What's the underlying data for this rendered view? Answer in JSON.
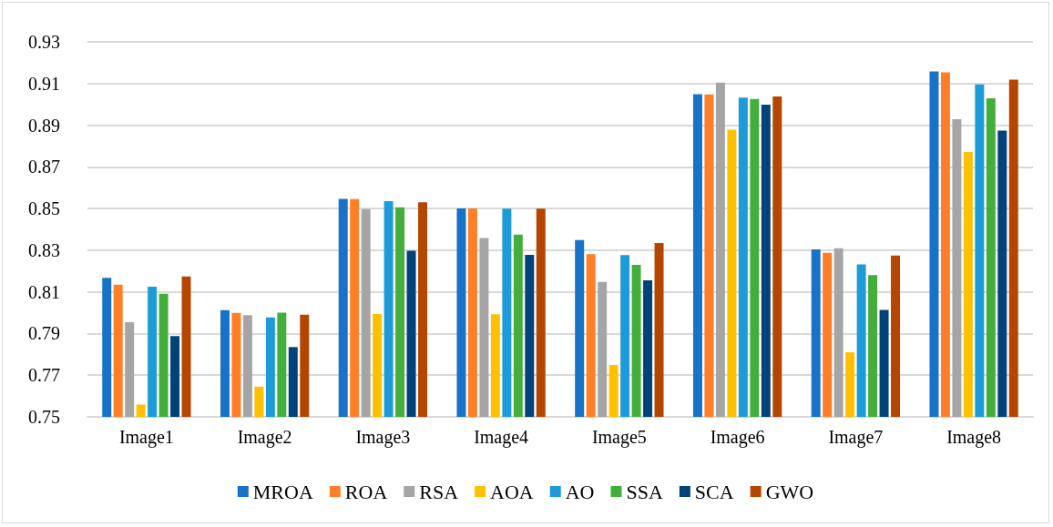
{
  "chart_data": {
    "type": "bar",
    "categories": [
      "Image1",
      "Image2",
      "Image3",
      "Image4",
      "Image5",
      "Image6",
      "Image7",
      "Image8"
    ],
    "series": [
      {
        "name": "MROA",
        "color": "#1772c8",
        "values": [
          0.8167,
          0.8012,
          0.8546,
          0.85,
          0.8349,
          0.9049,
          0.8304,
          0.9158
        ]
      },
      {
        "name": "ROA",
        "color": "#fe7f27",
        "values": [
          0.8135,
          0.7999,
          0.8545,
          0.85,
          0.8281,
          0.9048,
          0.8288,
          0.9154
        ]
      },
      {
        "name": "RSA",
        "color": "#a5a5a5",
        "values": [
          0.7954,
          0.7988,
          0.8497,
          0.8358,
          0.8148,
          0.9104,
          0.8309,
          0.8929
        ]
      },
      {
        "name": "AOA",
        "color": "#ffc000",
        "values": [
          0.7559,
          0.7645,
          0.7994,
          0.7993,
          0.7749,
          0.8878,
          0.781,
          0.8771
        ]
      },
      {
        "name": "AO",
        "color": "#1c9bd8",
        "values": [
          0.8125,
          0.7977,
          0.8535,
          0.8499,
          0.8277,
          0.9032,
          0.8232,
          0.9096
        ]
      },
      {
        "name": "SSA",
        "color": "#44ae3c",
        "values": [
          0.8091,
          0.8,
          0.8506,
          0.8375,
          0.823,
          0.9026,
          0.818,
          0.9029
        ]
      },
      {
        "name": "SCA",
        "color": "#00427a",
        "values": [
          0.7888,
          0.7835,
          0.8297,
          0.8278,
          0.8155,
          0.8999,
          0.8013,
          0.8874
        ]
      },
      {
        "name": "GWO",
        "color": "#b54600",
        "values": [
          0.8174,
          0.799,
          0.853,
          0.8499,
          0.8335,
          0.9038,
          0.8274,
          0.9119
        ]
      }
    ],
    "ylim": [
      0.75,
      0.93
    ],
    "yticks": [
      0.75,
      0.77,
      0.79,
      0.81,
      0.83,
      0.85,
      0.87,
      0.89,
      0.91,
      0.93
    ],
    "grid": "y",
    "legend": "bottom"
  }
}
